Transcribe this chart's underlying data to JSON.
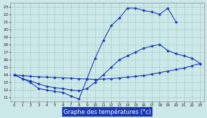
{
  "title": "Graphe des températures (°c)",
  "bg_color": "#cce8e8",
  "grid_color": "#aacccc",
  "line_color": "#1a3ab4",
  "xlim": [
    -0.5,
    23.5
  ],
  "ylim": [
    10.5,
    23.5
  ],
  "xticks": [
    0,
    1,
    2,
    3,
    4,
    5,
    6,
    7,
    8,
    9,
    10,
    11,
    12,
    13,
    14,
    15,
    16,
    17,
    18,
    19,
    20,
    21,
    22,
    23
  ],
  "yticks": [
    11,
    12,
    13,
    14,
    15,
    16,
    17,
    18,
    19,
    20,
    21,
    22,
    23
  ],
  "line1_x": [
    0,
    1,
    2,
    3,
    4,
    5,
    6,
    7,
    8,
    9,
    10,
    11,
    12,
    13,
    14,
    15,
    16,
    17,
    18,
    19,
    20
  ],
  "line1_y": [
    14.0,
    13.5,
    13.0,
    12.2,
    12.0,
    11.8,
    11.7,
    11.2,
    10.8,
    13.5,
    16.2,
    18.5,
    20.5,
    21.5,
    22.8,
    22.8,
    22.5,
    22.3,
    22.0,
    22.8,
    21.0
  ],
  "line2_x": [
    0,
    1,
    2,
    3,
    4,
    5,
    6,
    7,
    8,
    9,
    10,
    11,
    12,
    13,
    14,
    15,
    16,
    17,
    18,
    19,
    20,
    21,
    22,
    23
  ],
  "line2_y": [
    14.0,
    13.5,
    13.2,
    12.8,
    12.5,
    12.3,
    12.2,
    12.0,
    11.9,
    12.2,
    13.0,
    14.0,
    15.0,
    16.0,
    16.5,
    17.0,
    17.5,
    17.8,
    18.0,
    17.2,
    16.8,
    16.5,
    16.2,
    15.5
  ],
  "line3_x": [
    0,
    1,
    2,
    3,
    4,
    5,
    6,
    7,
    8,
    9,
    10,
    11,
    12,
    13,
    14,
    15,
    16,
    17,
    18,
    19,
    20,
    21,
    22,
    23
  ],
  "line3_y": [
    14.0,
    13.9,
    13.8,
    13.75,
    13.7,
    13.65,
    13.6,
    13.55,
    13.5,
    13.45,
    13.4,
    13.45,
    13.5,
    13.6,
    13.7,
    13.8,
    13.9,
    14.1,
    14.3,
    14.5,
    14.7,
    14.9,
    15.2,
    15.5
  ]
}
